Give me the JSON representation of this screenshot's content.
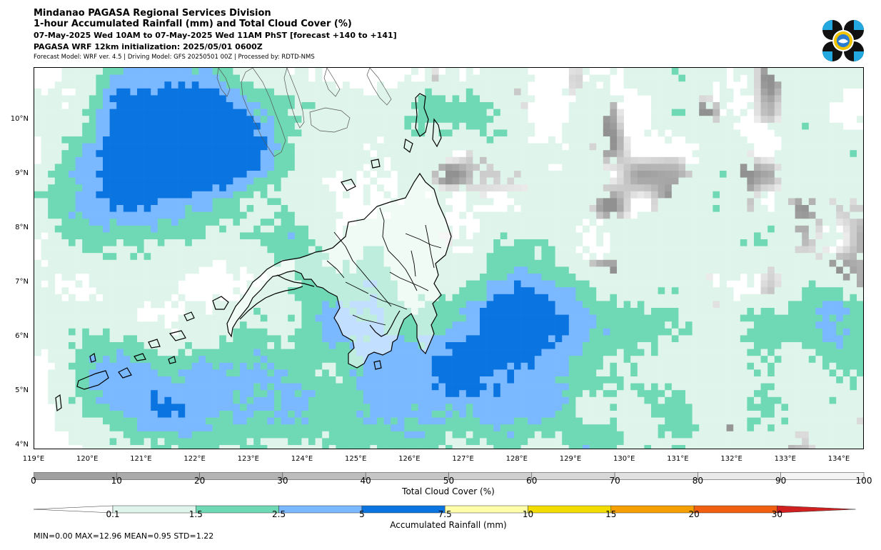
{
  "header": {
    "title": "Mindanao PAGASA Regional Services Division",
    "subtitle": "1-hour Accumulated Rainfall (mm) and Total Cloud Cover (%)",
    "valid_time": "07-May-2025 Wed 10AM to 07-May-2025 Wed 11AM PhST [forecast +140 to +141]",
    "init": "PAGASA WRF 12km initialization: 2025/05/01 0600Z",
    "credits": "Forecast Model: WRF ver. 4.5 | Driving Model: GFS 20250501 00Z | Processed by: RDTD-NMS"
  },
  "map": {
    "lat_labels": [
      "10°N",
      "9°N",
      "8°N",
      "7°N",
      "6°N",
      "5°N",
      "4°N"
    ],
    "lon_labels": [
      "119°E",
      "120°E",
      "121°E",
      "122°E",
      "123°E",
      "124°E",
      "125°E",
      "126°E",
      "127°E",
      "128°E",
      "129°E",
      "130°E",
      "131°E",
      "132°E",
      "133°E",
      "134°E"
    ]
  },
  "cloud_cover": {
    "title": "Total Cloud Cover (%)",
    "ticks": [
      "0",
      "10",
      "20",
      "30",
      "40",
      "50",
      "60",
      "70",
      "80",
      "90",
      "100"
    ],
    "colors": [
      "#a0a0a0",
      "#aaaaaa",
      "#b4b4b4",
      "#bdbdbd",
      "#c6c6c6",
      "#cfcfcf",
      "#d8d8d8",
      "#e1e1e1",
      "#eaeaea",
      "#f4f4f4"
    ]
  },
  "rainfall": {
    "title": "Accumulated Rainfall (mm)",
    "ticks": [
      "0.1",
      "1.5",
      "2.5",
      "5",
      "7.5",
      "10",
      "15",
      "20",
      "30"
    ],
    "colors": [
      "#ffffff",
      "#dff5ec",
      "#6fd8b5",
      "#7ab8ff",
      "#0a74e0",
      "#ffffaa",
      "#f2dc00",
      "#f5a000",
      "#f06010",
      "#d02020"
    ]
  },
  "stats": "MIN=0.00   MAX=12.96   MEAN=0.95   STD=1.22"
}
